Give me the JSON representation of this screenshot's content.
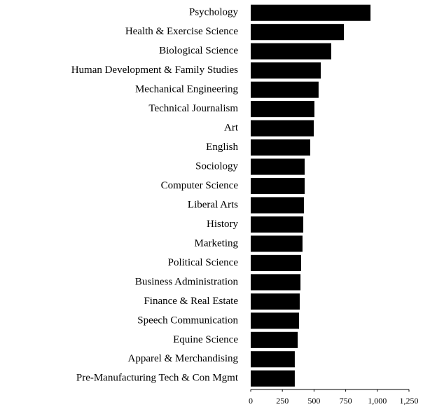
{
  "chart_data": {
    "type": "barh",
    "categories": [
      "Psychology",
      "Health & Exercise Science",
      "Biological Science",
      "Human Development & Family Studies",
      "Mechanical Engineering",
      "Technical Journalism",
      "Art",
      "English",
      "Sociology",
      "Computer Science",
      "Liberal Arts",
      "History",
      "Marketing",
      "Political Science",
      "Business Administration",
      "Finance & Real Estate",
      "Speech Communication",
      "Equine Science",
      "Apparel & Merchandising",
      "Pre-Manufacturing Tech & Con Mgmt"
    ],
    "values": [
      946,
      736,
      636,
      553,
      536,
      503,
      498,
      470,
      426,
      426,
      420,
      415,
      409,
      398,
      393,
      387,
      382,
      371,
      348,
      348
    ],
    "color": "#000000",
    "xlim": [
      0,
      1250
    ],
    "xticks": [
      0,
      250,
      500,
      750,
      {
        "value": 1000,
        "label": "1,000"
      },
      {
        "value": 1250,
        "label": "1,250"
      }
    ],
    "grid": false
  }
}
